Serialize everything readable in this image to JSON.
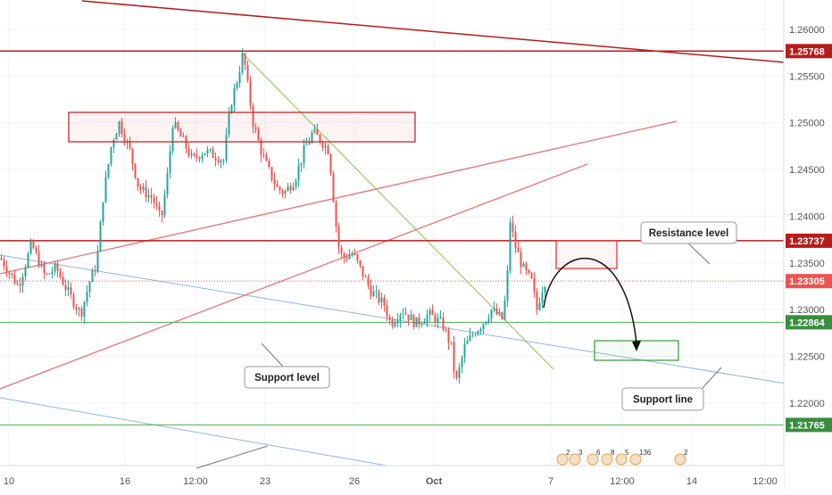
{
  "chart_data": {
    "type": "candlestick",
    "y_axis": {
      "ylim": [
        1.216,
        1.2635
      ],
      "ticks": [
        "1.26000",
        "1.25500",
        "1.25000",
        "1.24500",
        "1.24000",
        "1.23500",
        "1.23000",
        "1.22500",
        "1.22000"
      ]
    },
    "x_axis": {
      "ticks": [
        "10",
        "16",
        "12:00",
        "23",
        "26",
        "Oct",
        "7",
        "12:00",
        "14",
        "12:00"
      ]
    },
    "price_labels": [
      {
        "value": 1.25768,
        "text": "1.25768",
        "color": "#b71c1c"
      },
      {
        "value": 1.23737,
        "text": "1.23737",
        "color": "#b71c1c"
      },
      {
        "value": 1.23305,
        "text": "1.23305",
        "color": "#ef5350"
      },
      {
        "value": 1.22864,
        "text": "1.22864",
        "color": "#388e3c"
      },
      {
        "value": 1.21765,
        "text": "1.21765",
        "color": "#388e3c"
      }
    ],
    "annotations": {
      "resistance": "Resistance level",
      "support": "Support level",
      "support_line": "Support line"
    },
    "event_markers": [
      "2",
      "3",
      "6",
      "8",
      "5",
      "136",
      "2"
    ],
    "colors": {
      "up": "#26a69a",
      "down": "#ef5350",
      "resistance": "#b71c1c",
      "support": "#4caf50",
      "trendline": "#e57373",
      "channel": "#90b4e8",
      "downtrend": "#8bc34a"
    }
  }
}
